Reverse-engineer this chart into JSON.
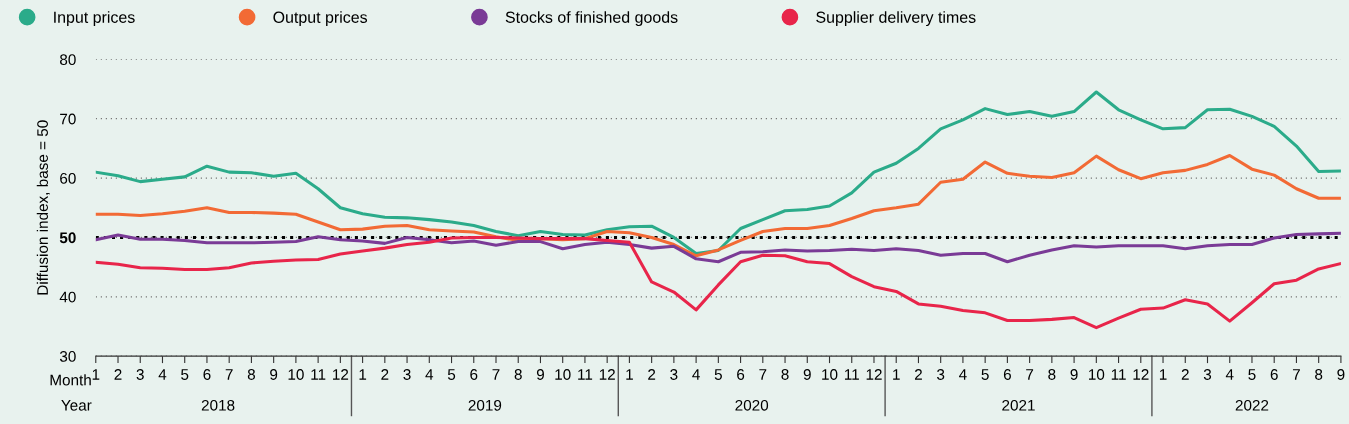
{
  "chart_data": {
    "type": "line",
    "ylabel": "Diffusion index, base = 50",
    "categories": [
      "1",
      "2",
      "3",
      "4",
      "5",
      "6",
      "7",
      "8",
      "9",
      "10",
      "11",
      "12",
      "1",
      "2",
      "3",
      "4",
      "5",
      "6",
      "7",
      "8",
      "9",
      "10",
      "11",
      "12",
      "1",
      "2",
      "3",
      "4",
      "5",
      "6",
      "7",
      "8",
      "9",
      "10",
      "11",
      "12",
      "1",
      "2",
      "3",
      "4",
      "5",
      "6",
      "7",
      "8",
      "9",
      "10",
      "11",
      "12",
      "1",
      "2",
      "3",
      "4",
      "5",
      "6",
      "7",
      "8",
      "9"
    ],
    "series": [
      {
        "name": "Input prices",
        "color": "#2bab8a",
        "values": [
          61,
          60.4,
          59.4,
          59.8,
          60.2,
          62,
          61,
          60.9,
          60.3,
          60.8,
          58.2,
          55,
          54,
          53.4,
          53.3,
          53,
          52.6,
          52,
          51,
          50.3,
          51,
          50.5,
          50.4,
          51.3,
          51.8,
          51.9,
          50,
          47.3,
          47.8,
          51.5,
          53,
          54.5,
          54.7,
          55.3,
          57.5,
          61,
          62.5,
          65,
          68.3,
          69.8,
          71.7,
          70.7,
          71.2,
          70.4,
          71.2,
          74.5,
          71.5,
          69.8,
          68.3,
          68.5,
          71.5,
          71.6,
          70.4,
          68.7,
          65.4,
          61.1,
          61.2
        ]
      },
      {
        "name": "Output prices",
        "color": "#f26a35",
        "values": [
          53.9,
          53.9,
          53.7,
          54,
          54.4,
          55,
          54.2,
          54.2,
          54.1,
          53.9,
          52.6,
          51.3,
          51.4,
          51.9,
          52,
          51.3,
          51.1,
          50.9,
          50.1,
          49.5,
          49.8,
          49.6,
          49.8,
          51,
          50.8,
          50,
          48.8,
          46.9,
          47.9,
          49.5,
          51,
          51.5,
          51.5,
          52,
          53.2,
          54.5,
          55,
          55.6,
          59.3,
          59.8,
          62.7,
          60.8,
          60.3,
          60.1,
          60.9,
          63.7,
          61.4,
          59.9,
          60.9,
          61.3,
          62.3,
          63.8,
          61.5,
          60.5,
          58.2,
          56.6,
          56.6
        ]
      },
      {
        "name": "Stocks of finished goods",
        "color": "#7a3b96",
        "values": [
          49.6,
          50.4,
          49.7,
          49.7,
          49.5,
          49.1,
          49.1,
          49.1,
          49.2,
          49.3,
          50.1,
          49.6,
          49.4,
          49,
          50,
          49.6,
          49.1,
          49.4,
          48.7,
          49.3,
          49.3,
          48.1,
          48.8,
          49.2,
          48.8,
          48.2,
          48.5,
          46.4,
          45.9,
          47.5,
          47.6,
          47.9,
          47.7,
          47.8,
          48,
          47.8,
          48.1,
          47.8,
          47,
          47.3,
          47.3,
          45.9,
          47,
          47.9,
          48.6,
          48.4,
          48.6,
          48.6,
          48.6,
          48.1,
          48.6,
          48.8,
          48.8,
          49.9,
          50.5,
          50.6,
          50.7
        ]
      },
      {
        "name": "Supplier delivery times",
        "color": "#e8254a",
        "values": [
          45.8,
          45.5,
          44.9,
          44.8,
          44.6,
          44.6,
          44.9,
          45.7,
          46,
          46.2,
          46.3,
          47.2,
          47.7,
          48.2,
          48.8,
          49.2,
          49.9,
          50,
          50,
          49.9,
          49.8,
          49.8,
          49.8,
          49.5,
          49.2,
          42.5,
          40.8,
          37.8,
          42,
          45.9,
          47,
          46.9,
          45.9,
          45.6,
          43.4,
          41.7,
          40.9,
          38.8,
          38.4,
          37.7,
          37.3,
          36,
          36,
          36.2,
          36.5,
          34.8,
          36.4,
          37.9,
          38.1,
          39.5,
          38.8,
          35.9,
          39,
          42.2,
          42.8,
          44.7,
          45.6
        ]
      }
    ],
    "ylim": [
      30,
      80
    ],
    "yticks": [
      30,
      40,
      50,
      60,
      70,
      80
    ],
    "grid": "y",
    "legend": "top left",
    "marker": "none",
    "line_style": "solid",
    "ref_lines": [
      {
        "axis": "y",
        "value": 50,
        "color": "#000000",
        "line_style": "dotted"
      }
    ],
    "annotations": [
      "Month",
      "Year",
      "2018",
      "2019",
      "2020",
      "2021",
      "2022"
    ]
  }
}
